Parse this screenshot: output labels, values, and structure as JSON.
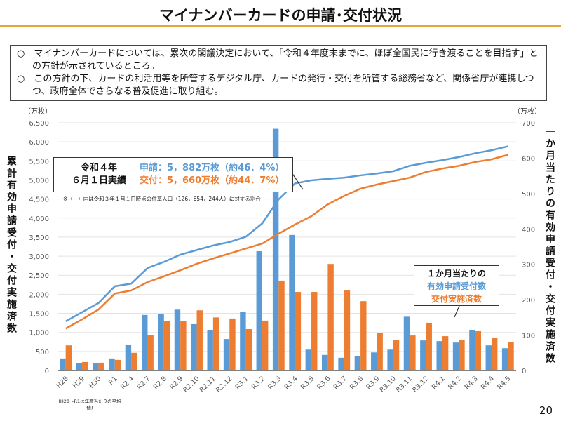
{
  "header": {
    "title": "マイナンバーカードの申請･交付状況",
    "page_number": "20"
  },
  "notes": [
    "○　マイナンバーカードについては、累次の閣議決定において、「令和４年度末までに、ほぼ全国民に行き渡ることを目指す」との方針が示されているところ。",
    "○　この方針の下、カードの利活用等を所管するデジタル庁、カードの発行・交付を所管する総務省など、関係省庁が連携しつつ、政府全体でさらなる普及促進に取り組む。"
  ],
  "callout": {
    "date_line1": "令和４年",
    "date_line2": "６月１日実績",
    "applied": "申請：5，882万枚（約46．4%）",
    "issued": "交付：5，660万枚（約44．7%）",
    "footnote": "※（　）内は令和３年１月１日時点の住基人口（126，654，244人）に対する割合"
  },
  "legend": {
    "line1": "１か月当たりの",
    "line2": "有効申請受付数",
    "line3": "交付実施済数"
  },
  "chart_data": {
    "type": "bar+line",
    "left_unit": "（万枚）",
    "right_unit": "（万枚）",
    "ylabel_left": "累計有効申請受付・交付実施済数",
    "ylabel_right": "一か月当たりの有効申請受付・交付実施済数",
    "x_note": "(H28～R1は年度当たりの平均値)",
    "ylim_left": [
      0,
      6500
    ],
    "ylim_right": [
      0,
      700
    ],
    "yticks_left": [
      "0",
      "500",
      "1,000",
      "1,500",
      "2,000",
      "2,500",
      "3,000",
      "3,500",
      "4,000",
      "4,500",
      "5,000",
      "5,500",
      "6,000",
      "6,500"
    ],
    "yticks_right": [
      "0",
      "100",
      "200",
      "300",
      "400",
      "500",
      "600",
      "700"
    ],
    "categories": [
      "H28",
      "H29",
      "H30",
      "R1",
      "R2.4",
      "R2.7",
      "R2.8",
      "R2.9",
      "R2.10",
      "R2.11",
      "R2.12",
      "R3.1",
      "R3.2",
      "R3.3",
      "R3.4",
      "R3.5",
      "R3.6",
      "R3.7",
      "R3.8",
      "R3.9",
      "R3.10",
      "R3.11",
      "R3.12",
      "R4.1",
      "R4.2",
      "R4.3",
      "R4.4",
      "R4.5"
    ],
    "bars_applied": [
      34,
      20,
      20,
      34,
      73,
      157,
      160,
      172,
      131,
      115,
      89,
      166,
      337,
      683,
      383,
      59,
      44,
      36,
      40,
      51,
      59,
      152,
      85,
      83,
      79,
      115,
      71,
      63
    ],
    "bars_issued": [
      71,
      24,
      22,
      30,
      50,
      101,
      139,
      139,
      170,
      150,
      147,
      117,
      141,
      254,
      222,
      222,
      301,
      226,
      196,
      107,
      87,
      99,
      135,
      97,
      87,
      111,
      93,
      81
    ],
    "line_applied": [
      1290,
      1530,
      1770,
      2210,
      2280,
      2690,
      2850,
      3040,
      3160,
      3280,
      3370,
      3510,
      3860,
      4490,
      4910,
      4990,
      5030,
      5060,
      5120,
      5170,
      5230,
      5370,
      5450,
      5520,
      5600,
      5700,
      5780,
      5882
    ],
    "line_issued": [
      1100,
      1340,
      1600,
      2020,
      2100,
      2320,
      2470,
      2630,
      2800,
      2940,
      3070,
      3200,
      3330,
      3590,
      3830,
      4050,
      4360,
      4580,
      4770,
      4880,
      4970,
      5060,
      5210,
      5300,
      5370,
      5470,
      5540,
      5660
    ],
    "colors": {
      "applied": "#5b9bd5",
      "issued": "#ed7d31"
    },
    "grid": true
  }
}
